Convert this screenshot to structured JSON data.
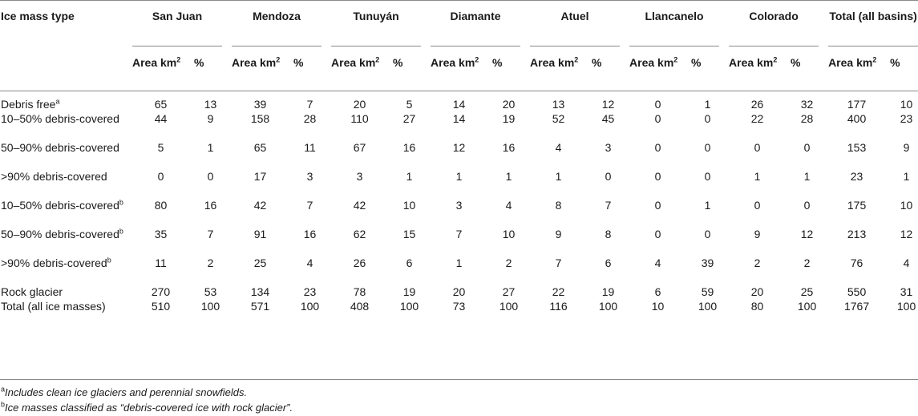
{
  "table": {
    "first_header": "Ice mass type",
    "basins": [
      "San Juan",
      "Mendoza",
      "Tunuyán",
      "Diamante",
      "Atuel",
      "Llancanelo",
      "Colorado",
      "Total (all basins)"
    ],
    "sub_area": "Area km",
    "sub_area_sup": "2",
    "sub_pct": "%",
    "rows": [
      {
        "label": "Debris free",
        "sup": "a",
        "values": [
          "65",
          "13",
          "39",
          "7",
          "20",
          "5",
          "14",
          "20",
          "13",
          "12",
          "0",
          "1",
          "26",
          "32",
          "177",
          "10"
        ]
      },
      {
        "label": "10–50% debris-covered",
        "sup": "",
        "values": [
          "44",
          "9",
          "158",
          "28",
          "110",
          "27",
          "14",
          "19",
          "52",
          "45",
          "0",
          "0",
          "22",
          "28",
          "400",
          "23"
        ]
      },
      {
        "label": "50–90% debris-covered",
        "sup": "",
        "values": [
          "5",
          "1",
          "65",
          "11",
          "67",
          "16",
          "12",
          "16",
          "4",
          "3",
          "0",
          "0",
          "0",
          "0",
          "153",
          "9"
        ]
      },
      {
        "label": ">90% debris-covered",
        "sup": "",
        "values": [
          "0",
          "0",
          "17",
          "3",
          "3",
          "1",
          "1",
          "1",
          "1",
          "0",
          "0",
          "0",
          "1",
          "1",
          "23",
          "1"
        ]
      },
      {
        "label": "10–50% debris-covered",
        "sup": "b",
        "values": [
          "80",
          "16",
          "42",
          "7",
          "42",
          "10",
          "3",
          "4",
          "8",
          "7",
          "0",
          "1",
          "0",
          "0",
          "175",
          "10"
        ]
      },
      {
        "label": "50–90% debris-covered",
        "sup": "b",
        "values": [
          "35",
          "7",
          "91",
          "16",
          "62",
          "15",
          "7",
          "10",
          "9",
          "8",
          "0",
          "0",
          "9",
          "12",
          "213",
          "12"
        ]
      },
      {
        "label": ">90% debris-covered",
        "sup": "b",
        "values": [
          "11",
          "2",
          "25",
          "4",
          "26",
          "6",
          "1",
          "2",
          "7",
          "6",
          "4",
          "39",
          "2",
          "2",
          "76",
          "4"
        ]
      },
      {
        "label": "Rock glacier",
        "sup": "",
        "values": [
          "270",
          "53",
          "134",
          "23",
          "78",
          "19",
          "20",
          "27",
          "22",
          "19",
          "6",
          "59",
          "20",
          "25",
          "550",
          "31"
        ]
      },
      {
        "label": "Total (all ice masses)",
        "sup": "",
        "values": [
          "510",
          "100",
          "571",
          "100",
          "408",
          "100",
          "73",
          "100",
          "116",
          "100",
          "10",
          "100",
          "80",
          "100",
          "1767",
          "100"
        ]
      }
    ]
  },
  "footnotes": [
    {
      "mark": "a",
      "text": "Includes clean ice glaciers and perennial snowfields."
    },
    {
      "mark": "b",
      "text": "Ice masses classified as “debris-covered ice with rock glacier”."
    }
  ]
}
